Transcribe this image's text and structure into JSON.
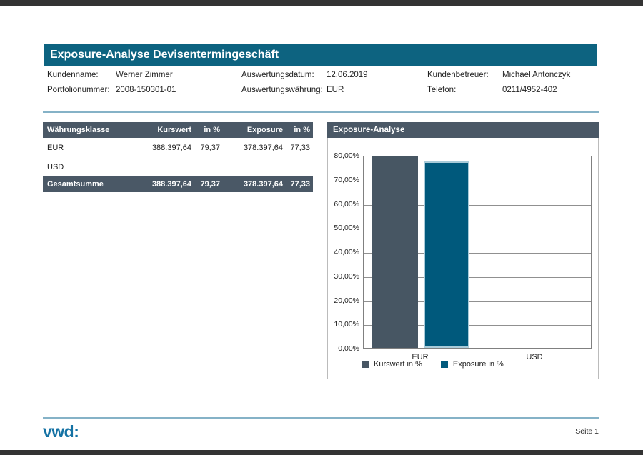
{
  "header": {
    "title": "Exposure-Analyse Devisentermingeschäft",
    "bg_color": "#0d6380"
  },
  "info": {
    "columns": [
      {
        "rows": [
          {
            "label": "Kundenname:",
            "value": "Werner Zimmer"
          },
          {
            "label": "Portfolionummer:",
            "value": "2008-150301-01"
          }
        ]
      },
      {
        "rows": [
          {
            "label": "Auswertungsdatum:",
            "value": "12.06.2019"
          },
          {
            "label": "Auswertungswährung:",
            "value": "EUR"
          }
        ]
      },
      {
        "rows": [
          {
            "label": "Kundenbetreuer:",
            "value": "Michael Antonczyk"
          },
          {
            "label": "Telefon:",
            "value": "0211/4952-402"
          }
        ]
      }
    ]
  },
  "table": {
    "header_bg": "#4a5866",
    "headers": [
      "Währungsklasse",
      "Kurswert",
      "in %",
      "Exposure",
      "in %"
    ],
    "rows": [
      [
        "EUR",
        "388.397,64",
        "79,37",
        "378.397,64",
        "77,33"
      ],
      [
        "USD",
        "",
        "",
        "",
        ""
      ]
    ],
    "footer": [
      "Gesamtsumme",
      "388.397,64",
      "79,37",
      "378.397,64",
      "77,33"
    ]
  },
  "chart": {
    "panel_title": "Exposure-Analyse"
  },
  "chart_data": {
    "type": "bar",
    "title": "Exposure-Analyse",
    "categories": [
      "EUR",
      "USD"
    ],
    "series": [
      {
        "name": "Kurswert in %",
        "values": [
          79.37,
          null
        ],
        "color": "#475663",
        "border": "#475663"
      },
      {
        "name": "Exposure in %",
        "values": [
          77.33,
          null
        ],
        "color": "#00597c",
        "border": "#a9cbd9"
      }
    ],
    "ylim": [
      0,
      80
    ],
    "ytick_step": 10,
    "ytick_labels": [
      "80,00%",
      "70,00%",
      "60,00%",
      "50,00%",
      "40,00%",
      "30,00%",
      "20,00%",
      "10,00%",
      "0,00%"
    ],
    "grid": true,
    "legend_position": "bottom"
  },
  "footer": {
    "logo": "vwd:",
    "page": "Seite 1"
  }
}
